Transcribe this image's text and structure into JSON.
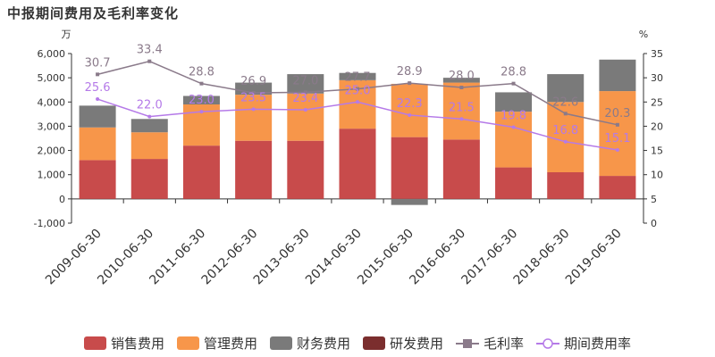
{
  "title": "中报期间费用及毛利率变化",
  "left_unit": "万",
  "right_unit": "%",
  "chart_data": {
    "type": "bar",
    "stacked": true,
    "categories": [
      "2009-06-30",
      "2010-06-30",
      "2011-06-30",
      "2012-06-30",
      "2013-06-30",
      "2014-06-30",
      "2015-06-30",
      "2016-06-30",
      "2017-06-30",
      "2018-06-30",
      "2019-06-30"
    ],
    "y_left": {
      "min": -1000,
      "max": 6000,
      "ticks": [
        -1000,
        0,
        1000,
        2000,
        3000,
        4000,
        5000,
        6000
      ],
      "tick_labels": [
        "-1,000",
        "0",
        "1,000",
        "2,000",
        "3,000",
        "4,000",
        "5,000",
        "6,000"
      ]
    },
    "y_right": {
      "min": 0,
      "max": 35,
      "ticks": [
        0,
        5,
        10,
        15,
        20,
        25,
        30,
        35
      ]
    },
    "series": [
      {
        "name": "销售费用",
        "kind": "bar",
        "color": "#c84b4b",
        "values": [
          1600,
          1650,
          2200,
          2400,
          2400,
          2900,
          2550,
          2450,
          1300,
          1100,
          950
        ]
      },
      {
        "name": "管理费用",
        "kind": "bar",
        "color": "#f7964a",
        "values": [
          1350,
          1100,
          1700,
          1900,
          1950,
          2000,
          2200,
          2350,
          2300,
          2900,
          3500
        ]
      },
      {
        "name": "财务费用",
        "kind": "bar",
        "color": "#7a7a7a",
        "values": [
          900,
          550,
          350,
          500,
          800,
          300,
          -250,
          200,
          800,
          1150,
          1300
        ]
      },
      {
        "name": "研发费用",
        "kind": "bar",
        "color": "#7b2e2e",
        "values": [
          0,
          0,
          0,
          0,
          0,
          0,
          0,
          0,
          0,
          0,
          0
        ]
      },
      {
        "name": "毛利率",
        "kind": "line",
        "axis": "right",
        "color": "#8a7a8a",
        "values": [
          30.7,
          33.4,
          28.8,
          26.9,
          27.0,
          27.7,
          28.9,
          28.0,
          28.8,
          22.6,
          20.3
        ],
        "labels": [
          "30.7",
          "33.4",
          "28.8",
          "26.9",
          "27.0",
          "27.7",
          "28.9",
          "28.0",
          "28.8",
          "22.6",
          "20.3"
        ]
      },
      {
        "name": "期间费用率",
        "kind": "line",
        "axis": "right",
        "color": "#b57ae8",
        "values": [
          25.6,
          22.0,
          23.0,
          23.5,
          23.4,
          25.0,
          22.3,
          21.5,
          19.8,
          16.8,
          15.1
        ],
        "labels": [
          "25.6",
          "22.0",
          "23.0",
          "23.5",
          "23.4",
          "25.0",
          "22.3",
          "21.5",
          "19.8",
          "16.8",
          "15.1"
        ]
      }
    ]
  }
}
